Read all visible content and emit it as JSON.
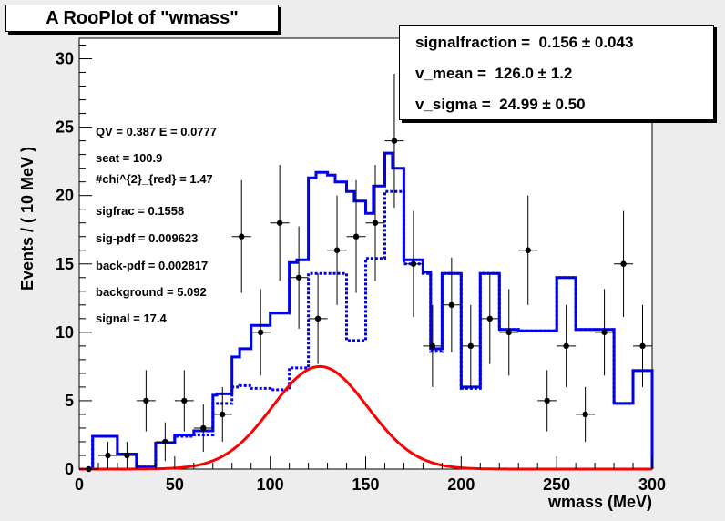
{
  "chart_data": {
    "type": "histogram",
    "title": "A RooPlot of \"wmass\"",
    "xlabel": "wmass (MeV)",
    "ylabel": "Events / ( 10 MeV )",
    "xlim": [
      0,
      300
    ],
    "ylim": [
      0,
      31.5
    ],
    "xticks": [
      0,
      50,
      100,
      150,
      200,
      250,
      300
    ],
    "yticks": [
      0,
      5,
      10,
      15,
      20,
      25,
      30
    ],
    "bin_width": 10,
    "data_points": {
      "x": [
        5,
        15,
        25,
        35,
        45,
        55,
        65,
        75,
        85,
        95,
        105,
        115,
        125,
        135,
        145,
        155,
        165,
        175,
        185,
        195,
        205,
        215,
        225,
        235,
        245,
        255,
        265,
        275,
        285,
        295
      ],
      "y": [
        0,
        1,
        1,
        5,
        2,
        5,
        3,
        4,
        17,
        10,
        18,
        14,
        11,
        16,
        17,
        18,
        24,
        15,
        9,
        12,
        9,
        11,
        10,
        16,
        5,
        9,
        4,
        10,
        15,
        9
      ]
    },
    "series": [
      {
        "name": "total-pdf",
        "style": "solid",
        "color": "#0000ee",
        "edges": [
          7,
          10,
          20,
          30,
          40,
          50,
          60,
          70,
          72,
          80,
          84,
          90,
          100,
          110,
          114,
          120,
          124,
          130,
          134,
          140,
          144,
          150,
          154,
          160,
          164,
          170,
          180,
          184,
          190,
          200,
          204,
          210,
          214,
          220,
          230,
          240,
          250,
          260,
          270,
          280,
          290,
          300
        ],
        "values": [
          2.4,
          2.4,
          1.1,
          0.15,
          1.9,
          2.5,
          2.8,
          5.4,
          5.5,
          8.2,
          8.8,
          10.5,
          11.4,
          15.1,
          15.3,
          21.3,
          21.7,
          21.5,
          21.0,
          20.3,
          19.6,
          18.7,
          20.7,
          23.1,
          22.0,
          15.3,
          14.4,
          8.8,
          14.3,
          6.0,
          6.0,
          14.3,
          14.3,
          10.2,
          10.1,
          10.1,
          14.0,
          10.2,
          10.2,
          4.8,
          7.2,
          0
        ]
      },
      {
        "name": "background",
        "style": "dashed",
        "color": "#0000ee",
        "edges": [
          7,
          10,
          20,
          30,
          40,
          50,
          60,
          70,
          72,
          80,
          84,
          90,
          100,
          110,
          114,
          120,
          124,
          130,
          134,
          140,
          144,
          150,
          154,
          160,
          164,
          170,
          180,
          184,
          190,
          200,
          204,
          210,
          214,
          220,
          230,
          240,
          250,
          260,
          270,
          280,
          290,
          300
        ],
        "values": [
          2.4,
          2.4,
          1.1,
          0.15,
          1.9,
          2.4,
          2.5,
          4.8,
          4.8,
          6.0,
          6.1,
          5.9,
          5.8,
          7.4,
          7.4,
          14.3,
          14.3,
          14.3,
          14.3,
          9.4,
          9.4,
          15.4,
          15.4,
          20.3,
          20.3,
          15.0,
          14.3,
          8.6,
          14.3,
          5.9,
          5.9,
          14.3,
          14.3,
          10.2,
          10.1,
          10.1,
          14.0,
          10.2,
          10.2,
          4.8,
          7.2,
          0
        ]
      },
      {
        "name": "signal",
        "style": "solid",
        "color": "#ff0000",
        "peak": 7.5,
        "mean": 126.0,
        "sigma": 24.99
      }
    ]
  },
  "plot": {
    "title": "A RooPlot of \"wmass\"",
    "xlabel": "wmass (MeV)",
    "ylabel": "Events / ( 10 MeV )",
    "stats": [
      "signalfraction =  0.156 ± 0.043",
      "v_mean =  126.0 ± 1.2",
      "v_sigma =  24.99 ± 0.50"
    ],
    "annotations": [
      "QV = 0.387 E = 0.0777",
      "seat = 100.9",
      "#chi^{2}_{red} = 1.47",
      "sigfrac = 0.1558",
      "sig-pdf = 0.009623",
      "back-pdf = 0.002817",
      "background = 5.092",
      "signal = 17.4"
    ]
  },
  "colors": {
    "background": "#ededed",
    "frame": "#ffffff",
    "pdf": "#0000ee",
    "signal": "#ff0000"
  }
}
